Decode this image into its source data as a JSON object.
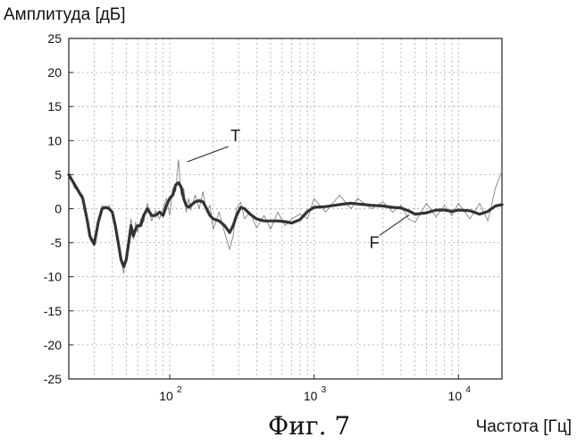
{
  "figure": {
    "caption": "Фиг. 7"
  },
  "chart_data": {
    "type": "line",
    "ylabel": "Амплитуда [дБ]",
    "xlabel": "Частота [Гц]",
    "x_scale": "log",
    "xlim": [
      20,
      20000
    ],
    "ylim": [
      -25,
      25
    ],
    "y_ticks": [
      "25",
      "20",
      "15",
      "10",
      "5",
      "0",
      "-5",
      "-10",
      "-15",
      "-20",
      "-25"
    ],
    "x_ticks": [
      {
        "base": "10",
        "exp": "2"
      },
      {
        "base": "10",
        "exp": "3"
      },
      {
        "base": "10",
        "exp": "4"
      }
    ],
    "grid": true,
    "annotations": [
      {
        "label": "T",
        "x": 125,
        "y": 6.5
      },
      {
        "label": "F",
        "x": 4300,
        "y": -0.5
      }
    ],
    "series": [
      {
        "label": "F",
        "style": "thick",
        "color": "#333333",
        "x": [
          20,
          22,
          25,
          27,
          28,
          30,
          32,
          34,
          36,
          38,
          40,
          42,
          44,
          46,
          48,
          50,
          52,
          54,
          56,
          58,
          60,
          63,
          66,
          70,
          75,
          80,
          85,
          90,
          95,
          100,
          105,
          110,
          115,
          120,
          125,
          130,
          135,
          140,
          150,
          160,
          170,
          180,
          190,
          200,
          220,
          240,
          260,
          275,
          290,
          310,
          330,
          360,
          400,
          450,
          500,
          560,
          630,
          700,
          800,
          900,
          1000,
          1200,
          1500,
          1800,
          2000,
          2500,
          3000,
          3500,
          4000,
          4500,
          5000,
          6000,
          7000,
          8000,
          9000,
          10000,
          12000,
          14000,
          16000,
          18000,
          20000
        ],
        "y": [
          5,
          3.5,
          1.5,
          -2,
          -4,
          -5.2,
          -2,
          0,
          0.2,
          0,
          -0.5,
          -2.5,
          -5,
          -7.5,
          -8.5,
          -7.5,
          -5,
          -2.5,
          -4,
          -3,
          -2.5,
          -2.5,
          -1,
          0,
          -1,
          -1,
          -0.5,
          -1,
          0.5,
          1.5,
          2,
          3.5,
          3.8,
          3.2,
          1.5,
          0.5,
          0.2,
          0.5,
          1,
          1.2,
          1,
          0,
          -1,
          -1.5,
          -1.8,
          -2.5,
          -3.5,
          -2.5,
          -1,
          0.2,
          0,
          -0.8,
          -1.5,
          -1.8,
          -1.8,
          -1.8,
          -1.9,
          -2.1,
          -1.6,
          -0.4,
          0.2,
          0.3,
          0.6,
          0.8,
          0.7,
          0.5,
          0.4,
          0.2,
          0.1,
          -0.3,
          -0.8,
          -0.6,
          -0.2,
          -0.2,
          -0.4,
          -0.2,
          -0.3,
          -0.8,
          -0.4,
          0.4,
          0.6
        ]
      },
      {
        "label": "T",
        "style": "thin",
        "color": "#777777",
        "x": [
          20,
          22,
          25,
          27,
          28,
          30,
          32,
          34,
          36,
          38,
          40,
          42,
          44,
          46,
          48,
          50,
          52,
          54,
          56,
          58,
          60,
          63,
          66,
          70,
          75,
          80,
          85,
          90,
          95,
          100,
          105,
          110,
          115,
          120,
          125,
          130,
          135,
          140,
          150,
          160,
          170,
          180,
          190,
          200,
          220,
          240,
          260,
          275,
          290,
          310,
          330,
          360,
          400,
          450,
          500,
          560,
          630,
          700,
          800,
          900,
          1000,
          1200,
          1500,
          1800,
          2000,
          2500,
          3000,
          3500,
          4000,
          4500,
          5000,
          6000,
          7000,
          8000,
          9000,
          10000,
          12000,
          14000,
          16000,
          18000,
          20000
        ],
        "y": [
          5,
          3,
          2,
          -1.5,
          -4.5,
          -5.5,
          -1.5,
          0.5,
          0,
          0.5,
          -1,
          -2,
          -5.5,
          -7,
          -9.5,
          -6.5,
          -4,
          -1.5,
          -4.5,
          -2,
          -3.5,
          -1.5,
          -2,
          0.8,
          -1.8,
          -0.3,
          -1.5,
          0,
          1.5,
          -1,
          3,
          2.5,
          7.2,
          2,
          3,
          -0.5,
          1.5,
          -0.2,
          2,
          0,
          2.5,
          -0.5,
          0.5,
          -3,
          -0.5,
          -3.5,
          -6,
          -4,
          0,
          1,
          -1.5,
          -0.5,
          -2.8,
          -1,
          -3,
          -0.5,
          -2.5,
          -1.5,
          -0.8,
          -1.5,
          1.5,
          -0.5,
          2,
          0,
          1.5,
          0,
          1,
          -0.5,
          0.5,
          -1.5,
          -2,
          0.8,
          -1.2,
          0.5,
          -1,
          0.8,
          -1.5,
          0.8,
          -1.8,
          3,
          5.5
        ]
      }
    ]
  }
}
